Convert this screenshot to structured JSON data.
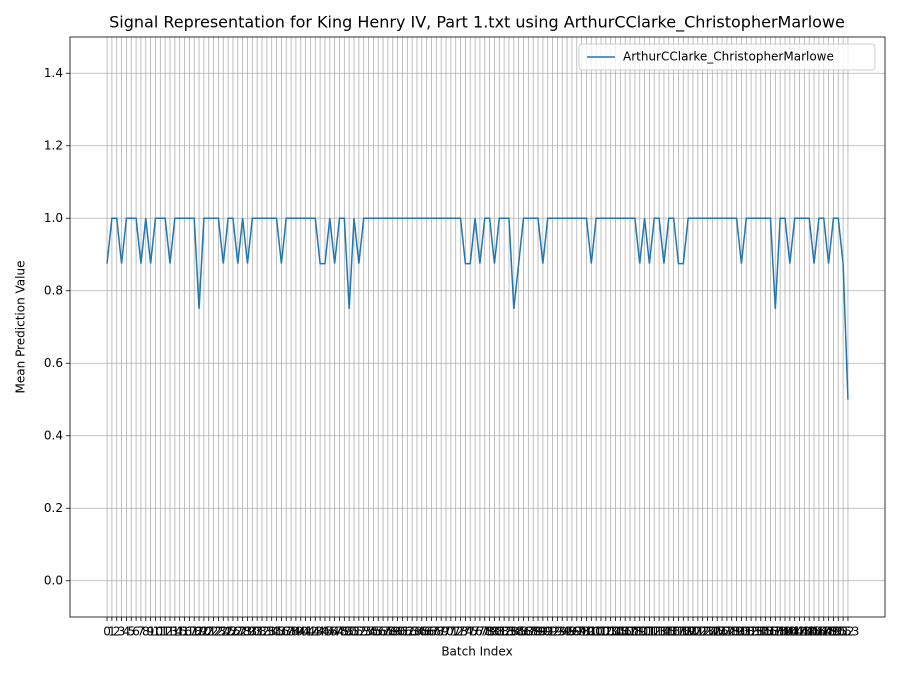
{
  "chart_data": {
    "type": "line",
    "title": "Signal Representation for King Henry IV, Part 1.txt using ArthurCClarke_ChristopherMarlowe",
    "x_label": "Batch Index",
    "y_label": "Mean Prediction Value",
    "x": [
      0,
      1,
      2,
      3,
      4,
      5,
      6,
      7,
      8,
      9,
      10,
      11,
      12,
      13,
      14,
      15,
      16,
      17,
      18,
      19,
      20,
      21,
      22,
      23,
      24,
      25,
      26,
      27,
      28,
      29,
      30,
      31,
      32,
      33,
      34,
      35,
      36,
      37,
      38,
      39,
      40,
      41,
      42,
      43,
      44,
      45,
      46,
      47,
      48,
      49,
      50,
      51,
      52,
      53,
      54,
      55,
      56,
      57,
      58,
      59,
      60,
      61,
      62,
      63,
      64,
      65,
      66,
      67,
      68,
      69,
      70,
      71,
      72,
      73,
      74,
      75,
      76,
      77,
      78,
      79,
      80,
      81,
      82,
      83,
      84,
      85,
      86,
      87,
      88,
      89,
      90,
      91,
      92,
      93,
      94,
      95,
      96,
      97,
      98,
      99,
      100,
      101,
      102,
      103,
      104,
      105,
      106,
      107,
      108,
      109,
      110,
      111,
      112,
      113,
      114,
      115,
      116,
      117,
      118,
      119,
      120,
      121,
      122,
      123,
      124,
      125,
      126,
      127,
      128,
      129,
      130,
      131,
      132,
      133,
      134,
      135,
      136,
      137,
      138,
      139,
      140,
      141,
      142,
      143,
      144,
      145,
      146,
      147,
      148,
      149,
      150,
      151,
      152,
      153
    ],
    "series": [
      {
        "name": "ArthurCClarke_ChristopherMarlowe",
        "color": "#1f77b4",
        "values": [
          0.875,
          1,
          1,
          0.875,
          1,
          1,
          1,
          0.875,
          1,
          0.875,
          1,
          1,
          1,
          0.875,
          1,
          1,
          1,
          1,
          1,
          0.75,
          1,
          1,
          1,
          1,
          0.875,
          1,
          1,
          0.875,
          1,
          0.875,
          1,
          1,
          1,
          1,
          1,
          1,
          0.875,
          1,
          1,
          1,
          1,
          1,
          1,
          1,
          0.875,
          0.875,
          1,
          0.875,
          1,
          1,
          0.75,
          1,
          0.875,
          1,
          1,
          1,
          1,
          1,
          1,
          1,
          1,
          1,
          1,
          1,
          1,
          1,
          1,
          1,
          1,
          1,
          1,
          1,
          1,
          1,
          0.875,
          0.875,
          1,
          0.875,
          1,
          1,
          0.875,
          1,
          1,
          1,
          0.75,
          0.875,
          1,
          1,
          1,
          1,
          0.875,
          1,
          1,
          1,
          1,
          1,
          1,
          1,
          1,
          1,
          0.875,
          1,
          1,
          1,
          1,
          1,
          1,
          1,
          1,
          1,
          0.875,
          1,
          0.875,
          1,
          1,
          0.875,
          1,
          1,
          0.875,
          0.875,
          1,
          1,
          1,
          1,
          1,
          1,
          1,
          1,
          1,
          1,
          1,
          0.875,
          1,
          1,
          1,
          1,
          1,
          1,
          0.75,
          1,
          1,
          0.875,
          1,
          1,
          1,
          1,
          0.875,
          1,
          1,
          0.875,
          1,
          1,
          0.875,
          0.5
        ]
      }
    ],
    "xlim": [
      -7.65,
      160.65
    ],
    "ylim": [
      -0.1,
      1.5
    ],
    "xticks": [
      0,
      1,
      2,
      3,
      4,
      5,
      6,
      7,
      8,
      9,
      10,
      11,
      12,
      13,
      14,
      15,
      16,
      17,
      18,
      19,
      20,
      21,
      22,
      23,
      24,
      25,
      26,
      27,
      28,
      29,
      30,
      31,
      32,
      33,
      34,
      35,
      36,
      37,
      38,
      39,
      40,
      41,
      42,
      43,
      44,
      45,
      46,
      47,
      48,
      49,
      50,
      51,
      52,
      53,
      54,
      55,
      56,
      57,
      58,
      59,
      60,
      61,
      62,
      63,
      64,
      65,
      66,
      67,
      68,
      69,
      70,
      71,
      72,
      73,
      74,
      75,
      76,
      77,
      78,
      79,
      80,
      81,
      82,
      83,
      84,
      85,
      86,
      87,
      88,
      89,
      90,
      91,
      92,
      93,
      94,
      95,
      96,
      97,
      98,
      99,
      100,
      101,
      102,
      103,
      104,
      105,
      106,
      107,
      108,
      109,
      110,
      111,
      112,
      113,
      114,
      115,
      116,
      117,
      118,
      119,
      120,
      121,
      122,
      123,
      124,
      125,
      126,
      127,
      128,
      129,
      130,
      131,
      132,
      133,
      134,
      135,
      136,
      137,
      138,
      139,
      140,
      141,
      142,
      143,
      144,
      145,
      146,
      147,
      148,
      149,
      150,
      151,
      152,
      153
    ],
    "yticks": [
      {
        "value": 0,
        "label": "0.0"
      },
      0.2,
      0.4,
      0.6,
      0.8,
      {
        "value": 1,
        "label": "1.0"
      },
      1.2,
      1.4
    ],
    "grid": true,
    "legend": "upper right"
  }
}
